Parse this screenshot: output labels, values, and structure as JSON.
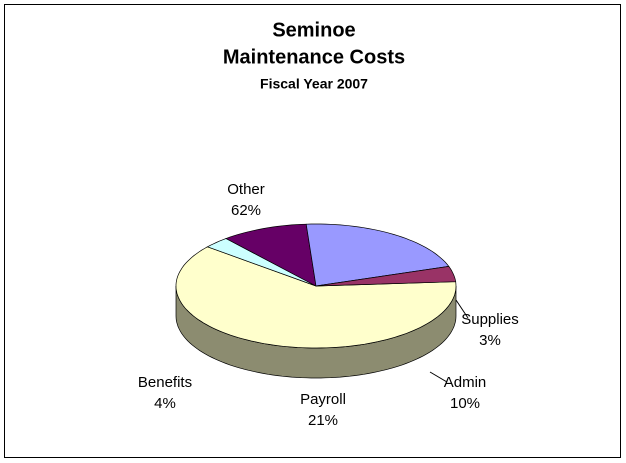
{
  "chart_data": {
    "type": "pie3d",
    "title": [
      "Seminoe",
      "Maintenance Costs"
    ],
    "subtitle": "Fiscal Year 2007",
    "categories": [
      "Other",
      "Supplies",
      "Admin",
      "Payroll",
      "Benefits"
    ],
    "values": [
      62,
      3,
      10,
      21,
      4
    ],
    "value_labels": [
      "62%",
      "3%",
      "10%",
      "21%",
      "4%"
    ],
    "colors": [
      "#ffffcc",
      "#ccffff",
      "#660066",
      "#9999ff",
      "#993366"
    ]
  }
}
